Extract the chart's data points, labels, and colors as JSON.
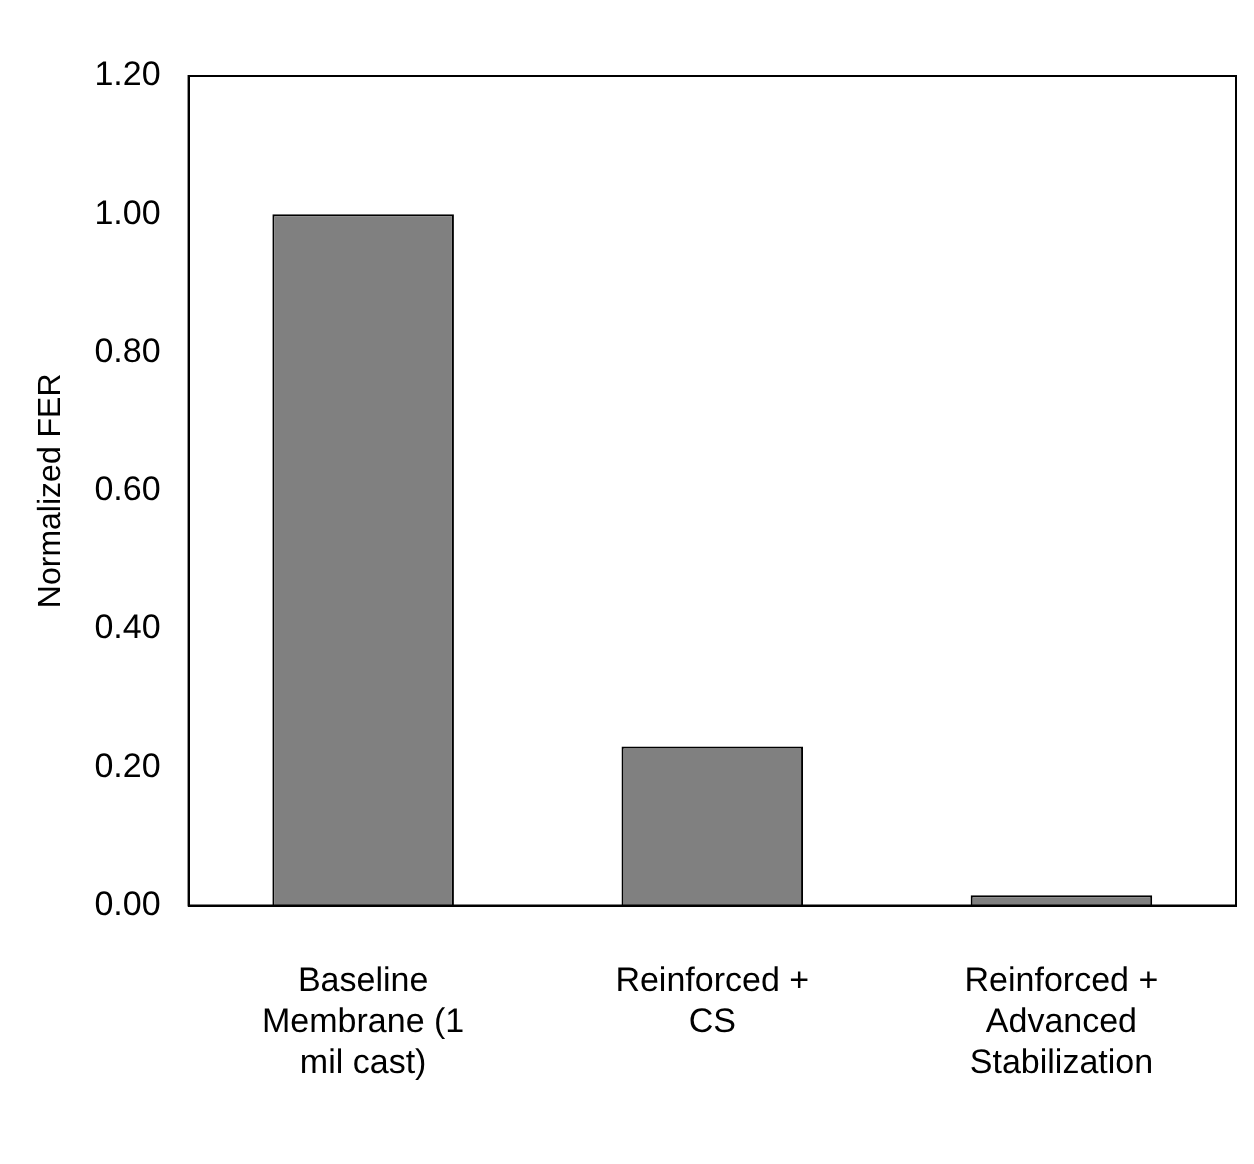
{
  "chart_data": {
    "type": "bar",
    "ylabel": "Normalized FER",
    "categories": [
      "Baseline Membrane (1 mil cast)",
      "Reinforced + CS",
      "Reinforced + Advanced Stabilization"
    ],
    "values": [
      1.0,
      0.23,
      0.015
    ],
    "color": "#808080",
    "ylim": [
      0,
      1.2
    ],
    "yticks": [
      {
        "value": 0,
        "label": "0.00"
      },
      {
        "value": 0.2,
        "label": "0.20"
      },
      {
        "value": 0.4,
        "label": "0.40"
      },
      {
        "value": 0.6,
        "label": "0.60"
      },
      {
        "value": 0.8,
        "label": "0.80"
      },
      {
        "value": 1.0,
        "label": "1.00"
      },
      {
        "value": 1.2,
        "label": "1.20"
      }
    ],
    "grid": false,
    "legend": false
  }
}
